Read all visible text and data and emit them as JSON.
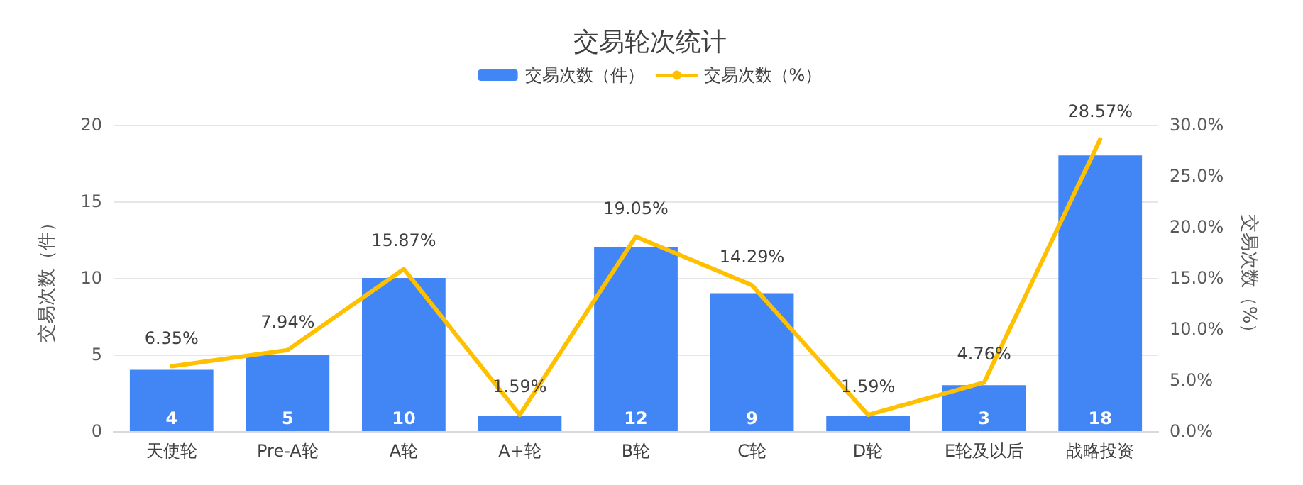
{
  "chart_data": {
    "type": "bar",
    "title": "交易轮次统计",
    "ylabel": "交易次数（件）",
    "y2label": "交易次数（%）",
    "categories": [
      "天使轮",
      "Pre-A轮",
      "A轮",
      "A+轮",
      "B轮",
      "C轮",
      "D轮",
      "E轮及以后",
      "战略投资"
    ],
    "series": [
      {
        "name": "交易次数（件）",
        "color": "#4285f4",
        "values": [
          4,
          5,
          10,
          1,
          12,
          9,
          1,
          3,
          18
        ],
        "value_labels": [
          "4",
          "5",
          "10",
          null,
          "12",
          "9",
          null,
          "3",
          "18"
        ]
      },
      {
        "name": "交易次数（%）",
        "type": "line",
        "axis": "y2",
        "color": "#ffc000",
        "values": [
          6.35,
          7.94,
          15.87,
          1.59,
          19.05,
          14.29,
          1.59,
          4.76,
          28.57
        ],
        "value_labels": [
          "6.35%",
          "7.94%",
          "15.87%",
          "1.59%",
          "19.05%",
          "14.29%",
          "1.59%",
          "4.76%",
          "28.57%"
        ]
      }
    ],
    "ylim": [
      0,
      20
    ],
    "yticks": [
      0,
      5,
      10,
      15,
      20
    ],
    "y2lim": [
      0,
      30
    ],
    "y2ticks": [
      {
        "value": 0,
        "label": "0.0%"
      },
      {
        "value": 5,
        "label": "5.0%"
      },
      {
        "value": 10,
        "label": "10.0%"
      },
      {
        "value": 15,
        "label": "15.0%"
      },
      {
        "value": 20,
        "label": "20.0%"
      },
      {
        "value": 25,
        "label": "25.0%"
      },
      {
        "value": 30,
        "label": "30.0%"
      }
    ],
    "grid": "y",
    "legend": "top",
    "marker": "none",
    "line_style": "solid"
  }
}
